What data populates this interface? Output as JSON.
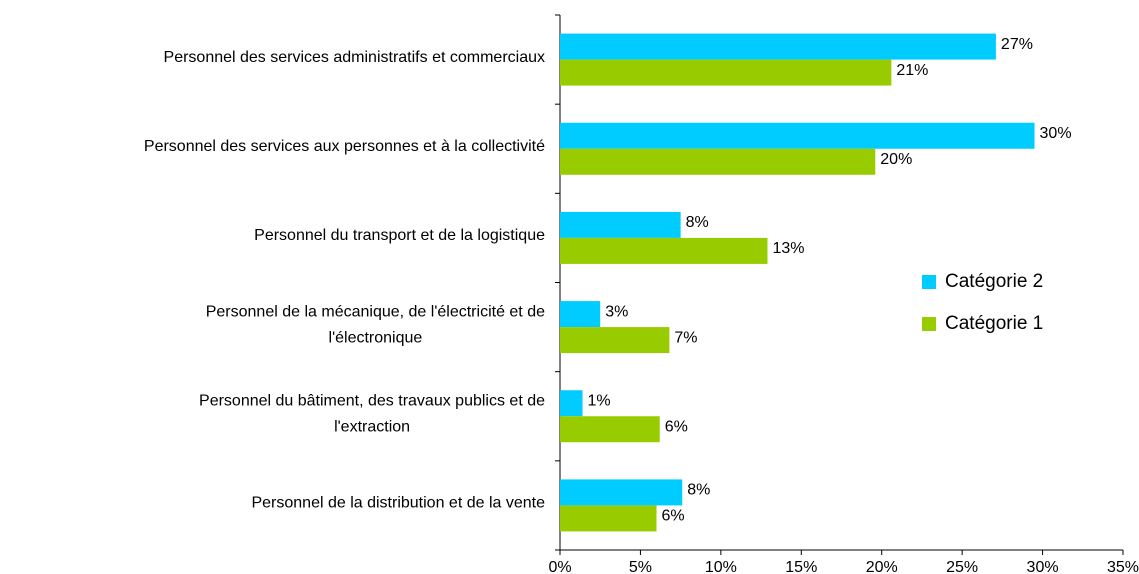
{
  "chart_data": {
    "type": "bar",
    "orientation": "horizontal",
    "categories": [
      [
        "Personnel des services administratifs et commerciaux"
      ],
      [
        "Personnel des services aux personnes et à la collectivité"
      ],
      [
        "Personnel du transport et de la logistique"
      ],
      [
        "Personnel de la mécanique, de l'électricité et de",
        "l'électronique"
      ],
      [
        "Personnel du bâtiment, des travaux publics et de",
        "l'extraction"
      ],
      [
        "Personnel de la distribution et de la vente"
      ]
    ],
    "series": [
      {
        "name": "Catégorie 2",
        "color": "#00ccff",
        "values": [
          27.1,
          29.5,
          7.5,
          2.5,
          1.4,
          7.6
        ],
        "value_labels": [
          "27%",
          "30%",
          "8%",
          "3%",
          "1%",
          "8%"
        ]
      },
      {
        "name": "Catégorie 1",
        "color": "#99cc00",
        "values": [
          20.6,
          19.6,
          12.9,
          6.8,
          6.2,
          6.0
        ],
        "value_labels": [
          "21%",
          "20%",
          "13%",
          "7%",
          "6%",
          "6%"
        ]
      }
    ],
    "xlim": [
      0,
      35
    ],
    "xticks": [
      {
        "value": 0,
        "label": "0%"
      },
      {
        "value": 5,
        "label": "5%"
      },
      {
        "value": 10,
        "label": "10%"
      },
      {
        "value": 15,
        "label": "15%"
      },
      {
        "value": 20,
        "label": "20%"
      },
      {
        "value": 25,
        "label": "25%"
      },
      {
        "value": 30,
        "label": "30%"
      },
      {
        "value": 35,
        "label": "35%"
      }
    ],
    "grid": false,
    "legend": "right"
  }
}
